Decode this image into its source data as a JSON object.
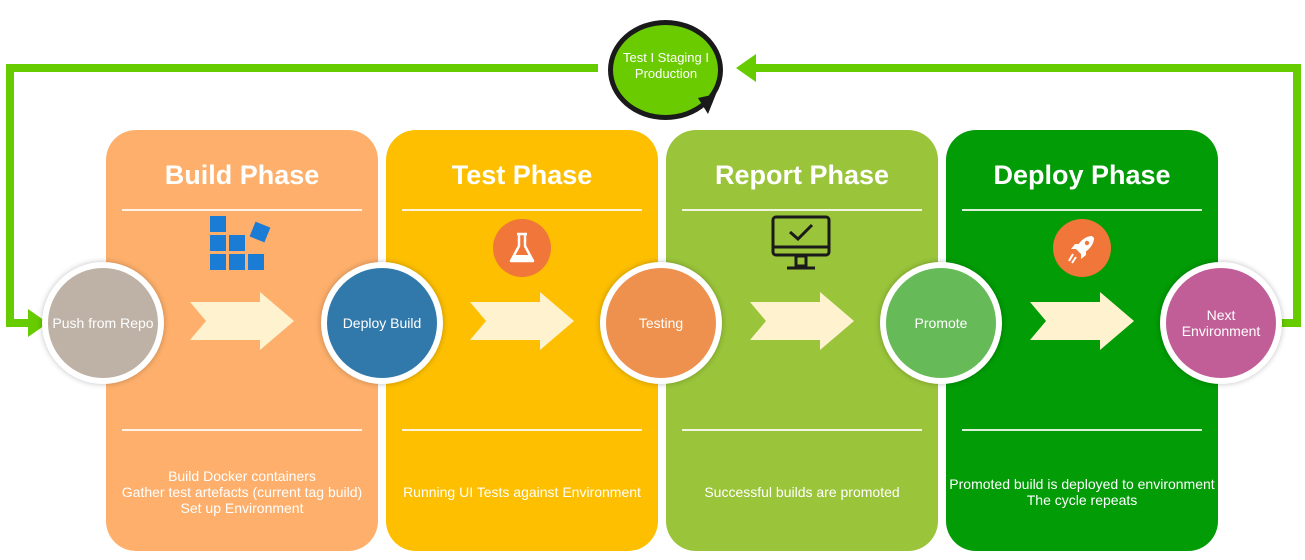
{
  "cycle": {
    "label": "Test I Staging I Production"
  },
  "colors": {
    "loop_line": "#66cc00",
    "build_phase": "#fdaf6b",
    "test_phase": "#fdbf00",
    "report_phase": "#9ac43a",
    "deploy_phase": "#019c06",
    "arrow_fill": "#fff3cf",
    "push_node": "#beb1a6",
    "deploy_build_node": "#3279ab",
    "testing_node": "#ee914e",
    "promote_node": "#66ba58",
    "next_env_node": "#c25e97",
    "icon_blue": "#1b7cd6",
    "icon_orange": "#f07639"
  },
  "phases": [
    {
      "title": "Build Phase",
      "icon": "stacked-blocks-icon",
      "description": [
        "Build Docker containers",
        "Gather test artefacts (current tag build)",
        "Set up Environment"
      ]
    },
    {
      "title": "Test Phase",
      "icon": "flask-icon",
      "description": [
        "Running UI Tests against Environment"
      ]
    },
    {
      "title": "Report Phase",
      "icon": "monitor-check-icon",
      "description": [
        "Successful builds are promoted"
      ]
    },
    {
      "title": "Deploy Phase",
      "icon": "rocket-icon",
      "description": [
        "Promoted build is deployed to environment",
        "The cycle repeats"
      ]
    }
  ],
  "nodes": [
    {
      "label": "Push from Repo"
    },
    {
      "label": "Deploy Build"
    },
    {
      "label": "Testing"
    },
    {
      "label": "Promote"
    },
    {
      "label": "Next Environment"
    }
  ]
}
